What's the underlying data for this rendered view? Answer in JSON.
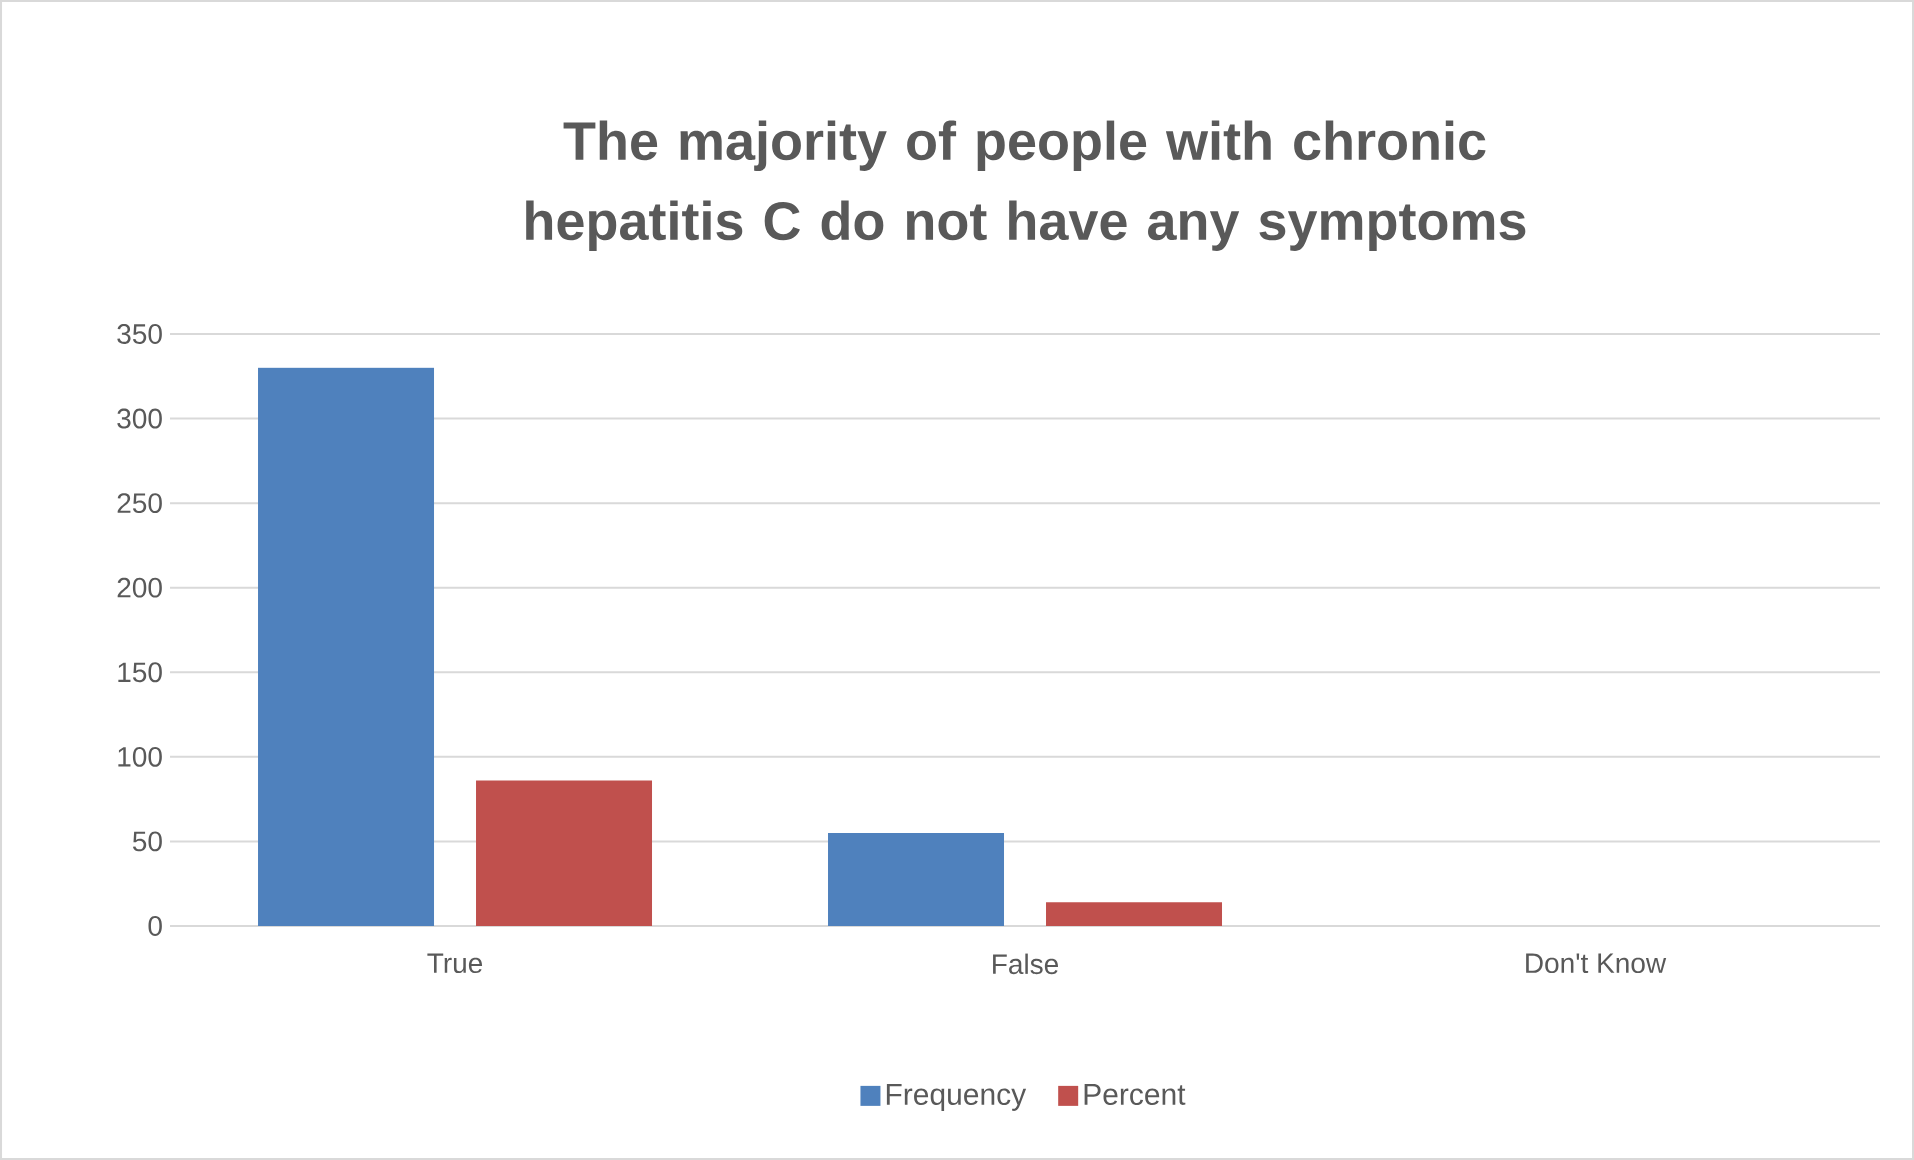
{
  "chart_data": {
    "type": "bar",
    "title": "The majority of people with chronic hepatitis C do not have any symptoms",
    "categories": [
      "True",
      "False",
      "Don't Know"
    ],
    "series": [
      {
        "name": "Frequency",
        "color": "#4f81bd",
        "values": [
          330,
          55,
          0
        ]
      },
      {
        "name": "Percent",
        "color": "#c0504d",
        "values": [
          86,
          14,
          0
        ]
      }
    ],
    "ylim": [
      0,
      350
    ],
    "yticks": [
      0,
      50,
      100,
      150,
      200,
      250,
      300,
      350
    ],
    "grid": "y",
    "legend": "bottom"
  }
}
